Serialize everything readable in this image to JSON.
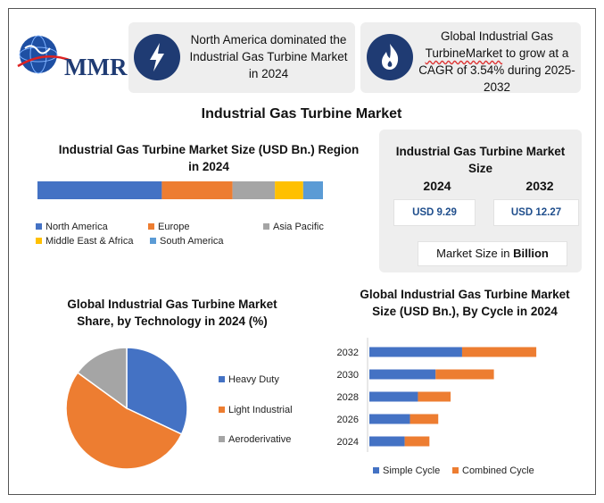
{
  "logo": {
    "text": "MMR"
  },
  "info_cards": [
    {
      "icon": "lightning-icon",
      "text": "North America dominated the Industrial Gas Turbine Market in 2024"
    },
    {
      "icon": "flame-icon",
      "text_before": "Global Industrial Gas ",
      "text_underlined": "TurbineMarket",
      "text_after": " to grow at a CAGR of 3.54% during 2025-2032"
    }
  ],
  "main_title": "Industrial Gas Turbine Market",
  "region_chart": {
    "title": "Industrial Gas Turbine Market Size (USD Bn.) Region in 2024"
  },
  "market_size_panel": {
    "title": "Industrial Gas Turbine Market Size",
    "year_2024": "2024",
    "year_2032": "2032",
    "value_2024": "USD 9.29",
    "value_2032": "USD 12.27",
    "footer_prefix": "Market Size in ",
    "footer_bold": "Billion"
  },
  "technology_chart": {
    "title": "Global Industrial Gas Turbine Market Share, by Technology in 2024 (%)"
  },
  "cycle_chart": {
    "title": "Global Industrial Gas Turbine Market Size (USD Bn.), By Cycle in 2024"
  },
  "colors": {
    "blue": "#4472c4",
    "orange": "#ed7d31",
    "gray": "#a5a5a5",
    "yellow": "#ffc000",
    "lightblue": "#5b9bd5",
    "navy": "#1f3b73"
  },
  "chart_data": [
    {
      "type": "bar",
      "orientation": "stacked-horizontal",
      "title": "Industrial Gas Turbine Market Size (USD Bn.) Region in 2024",
      "categories": [
        "North America",
        "Europe",
        "Asia Pacific",
        "Middle East & Africa",
        "South America"
      ],
      "values": [
        44,
        25,
        15,
        10,
        7
      ],
      "legend": "bottom"
    },
    {
      "type": "pie",
      "title": "Global Industrial Gas Turbine Market Share, by Technology in 2024 (%)",
      "categories": [
        "Heavy Duty",
        "Light Industrial",
        "Aeroderivative"
      ],
      "values": [
        32,
        53,
        15
      ],
      "legend": "right"
    },
    {
      "type": "bar",
      "orientation": "stacked-horizontal",
      "title": "Global Industrial Gas Turbine Market Size (USD Bn.), By Cycle in 2024",
      "categories": [
        "2024",
        "2026",
        "2028",
        "2030",
        "2032"
      ],
      "series": [
        {
          "name": "Simple Cycle",
          "values": [
            4.0,
            4.6,
            5.5,
            7.5,
            10.5
          ]
        },
        {
          "name": "Combined Cycle",
          "values": [
            2.8,
            3.2,
            3.7,
            6.6,
            8.4
          ]
        }
      ],
      "legend": "bottom"
    }
  ]
}
